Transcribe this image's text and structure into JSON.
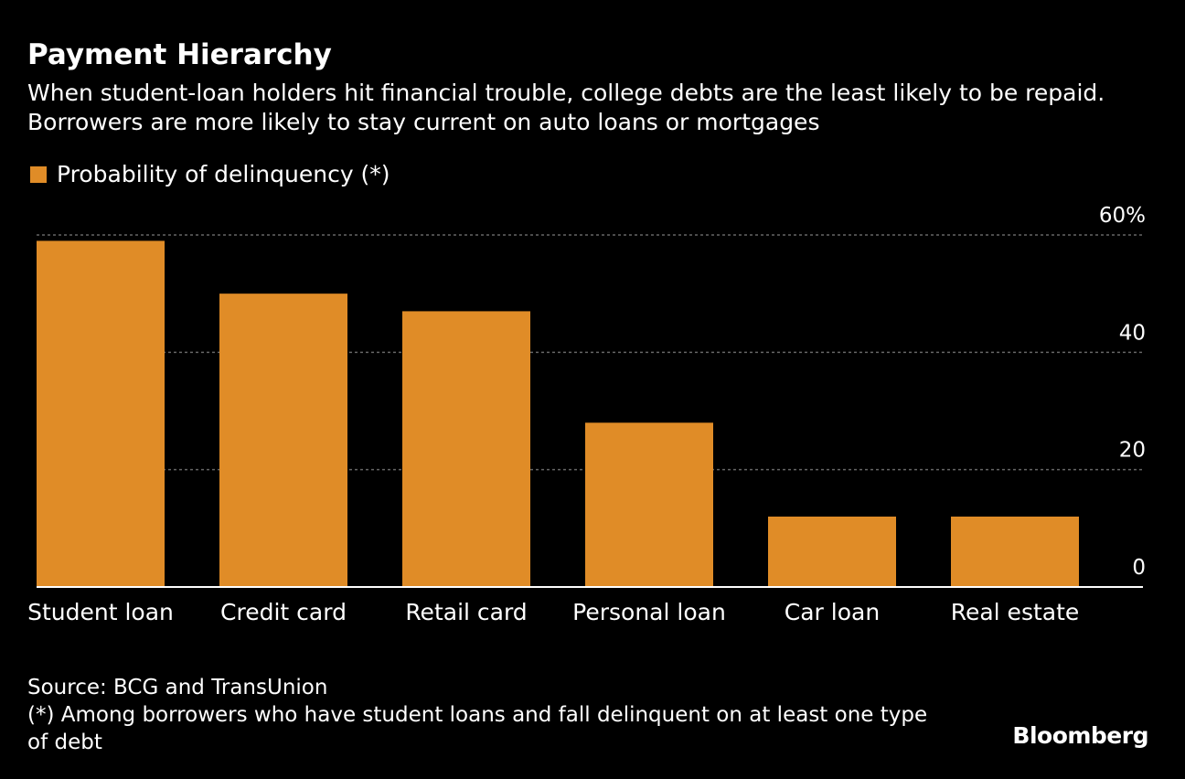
{
  "colors": {
    "background": "#000000",
    "bar": "#e08c27",
    "text": "#ffffff",
    "gridline": "#666666",
    "axis": "#ffffff"
  },
  "header": {
    "title": "Payment Hierarchy",
    "subtitle": "When student-loan holders hit financial trouble, college debts are the least likely to be repaid. Borrowers are more likely to stay current on auto loans or mortgages"
  },
  "legend": {
    "label": "Probability of delinquency (*)"
  },
  "footer": {
    "source": "Source: BCG and TransUnion",
    "note": "(*) Among borrowers who have student loans and fall delinquent on at least one type of debt",
    "brand": "Bloomberg"
  },
  "chart_data": {
    "type": "bar",
    "title": "Payment Hierarchy",
    "categories": [
      "Student loan",
      "Credit card",
      "Retail card",
      "Personal loan",
      "Car loan",
      "Real estate"
    ],
    "series": [
      {
        "name": "Probability of delinquency (*)",
        "values": [
          59,
          50,
          47,
          28,
          12,
          12
        ]
      }
    ],
    "ylim": [
      0,
      60
    ],
    "yticks": [
      0,
      20,
      40,
      60
    ],
    "ytick_labels": [
      "0",
      "20",
      "40",
      "60%"
    ],
    "xlabel": "",
    "ylabel": "",
    "grid": true,
    "grid_style": "dotted",
    "y_axis_side": "right",
    "legend_position": "top-left"
  }
}
